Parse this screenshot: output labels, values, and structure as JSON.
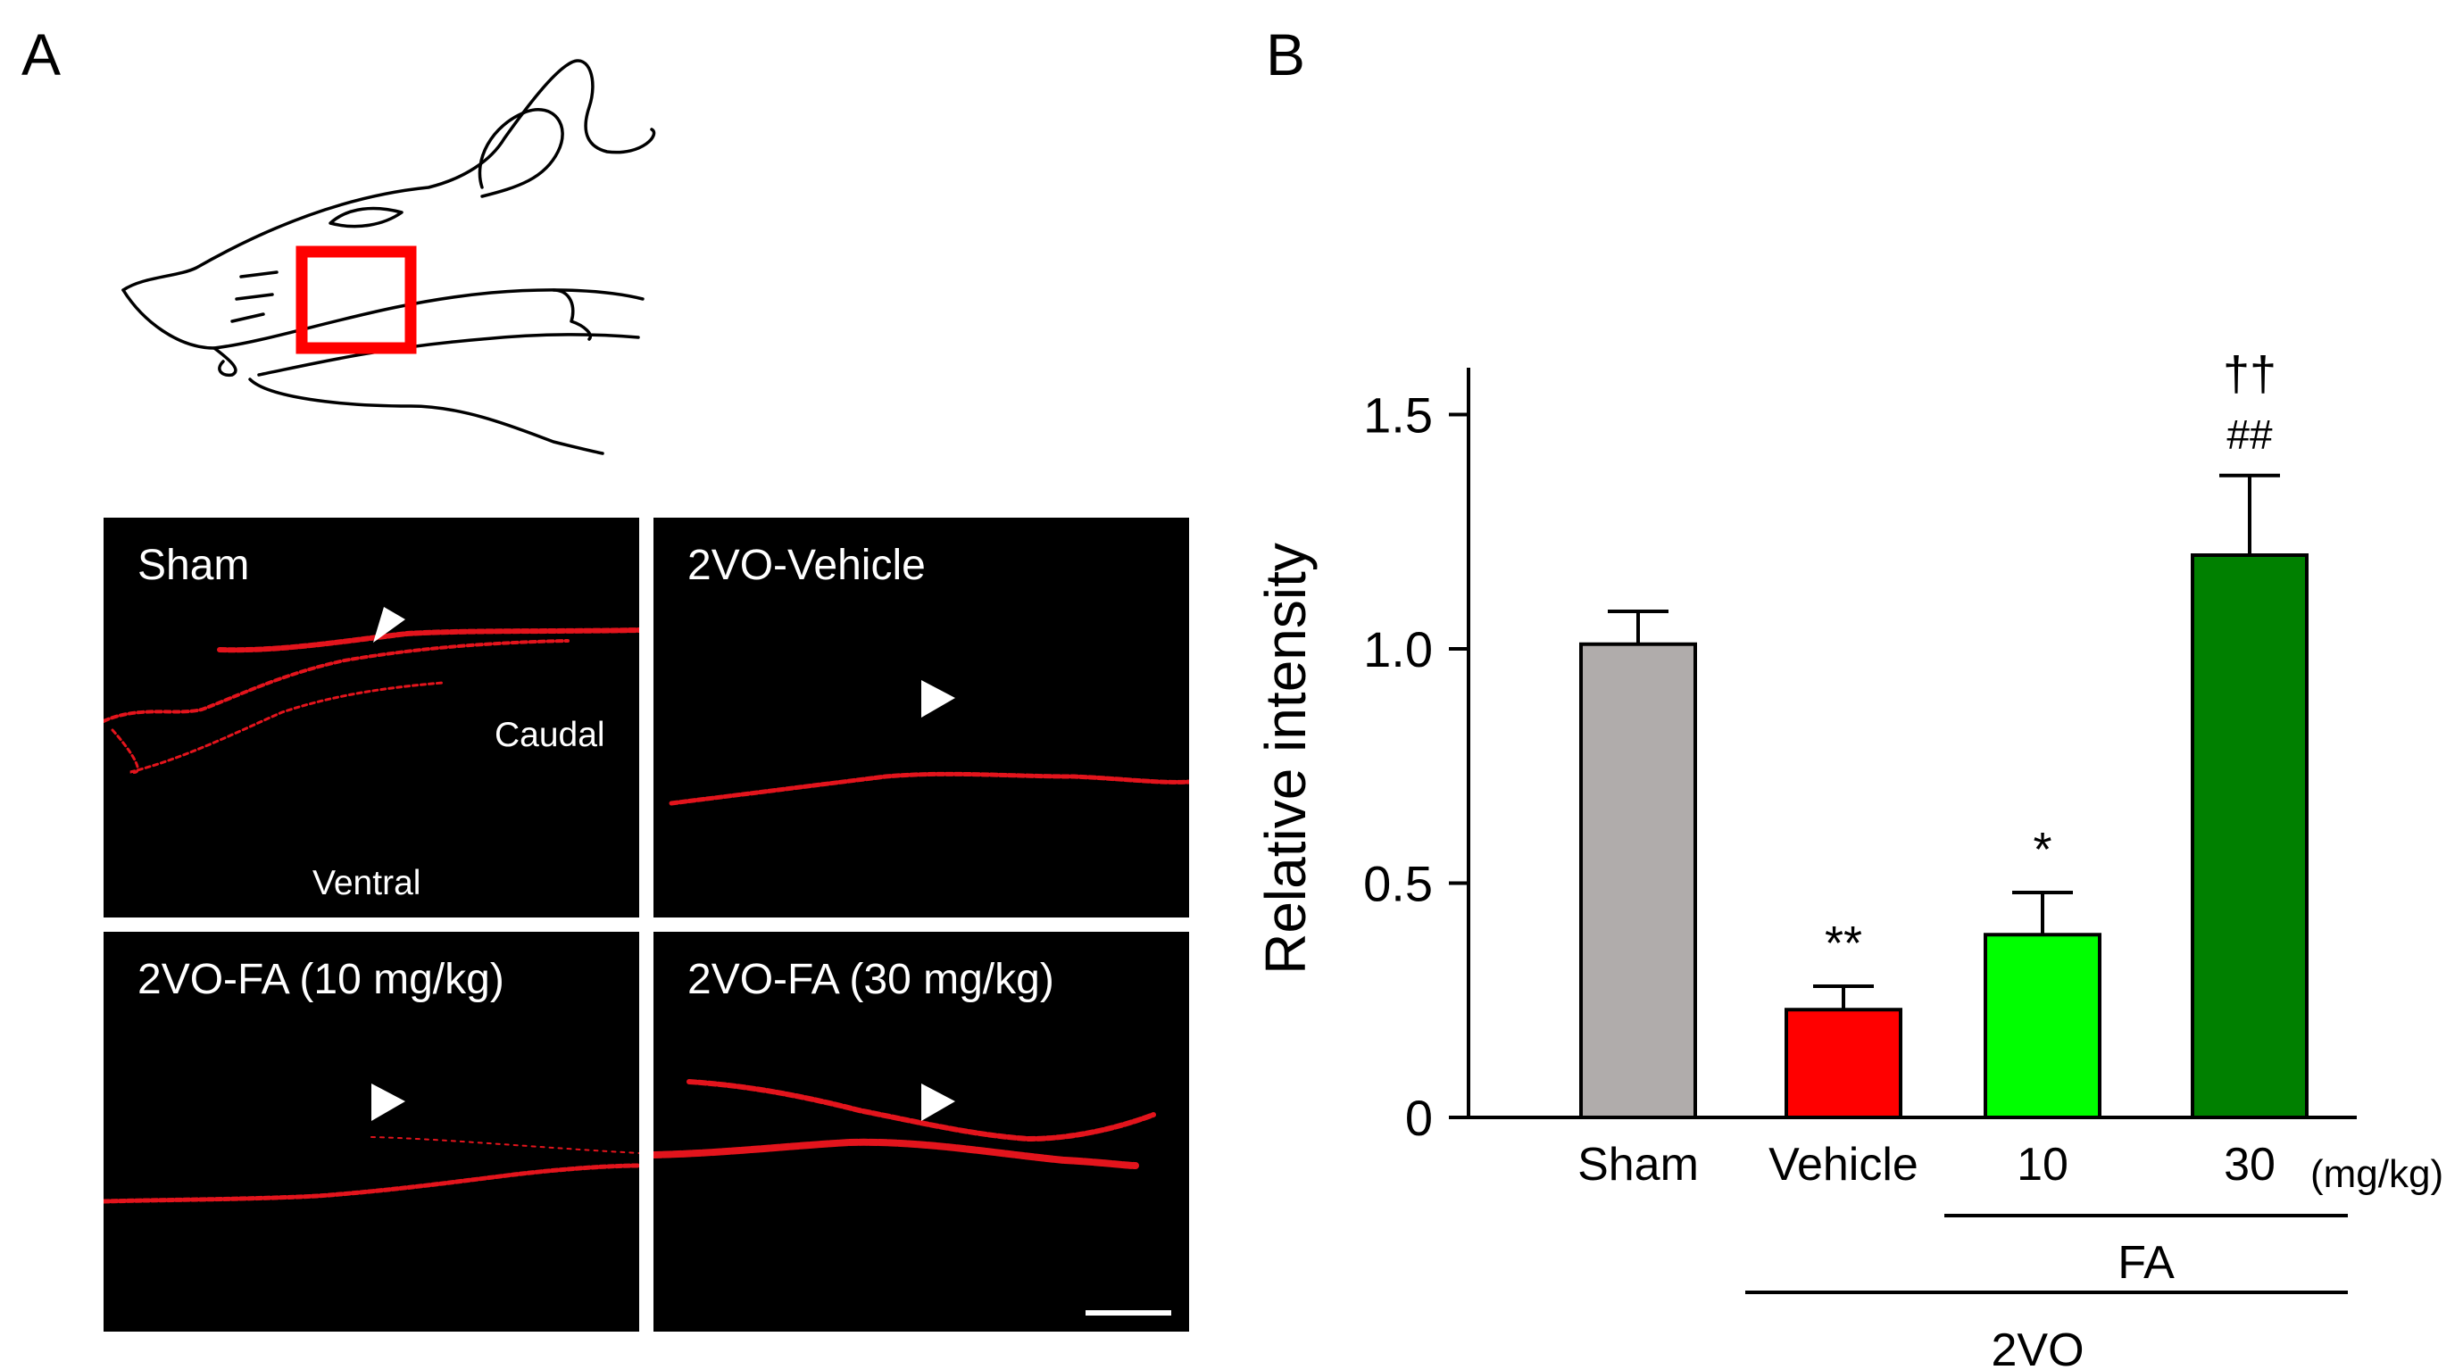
{
  "panels": {
    "a_label": "A",
    "b_label": "B"
  },
  "micrographs": [
    {
      "label": "Sham",
      "orientation": [
        "Caudal",
        "Ventral"
      ]
    },
    {
      "label": "2VO-Vehicle"
    },
    {
      "label": "2VO-FA (10 mg/kg)"
    },
    {
      "label": "2VO-FA (30 mg/kg)"
    }
  ],
  "colors": {
    "sham": "#b0acab",
    "vehicle": "#ff0000",
    "fa10": "#00ff00",
    "fa30": "#008000",
    "signal": "#e3141c",
    "highlight_box": "#ff0000"
  },
  "chart_data": {
    "type": "bar",
    "title": "",
    "xlabel": "",
    "ylabel": "Relative intensity",
    "ylim": [
      0,
      1.6
    ],
    "yticks": [
      "0",
      "0.5",
      "1.0",
      "1.5"
    ],
    "ytick_values": [
      0,
      0.5,
      1.0,
      1.5
    ],
    "categories": [
      "Sham",
      "Vehicle",
      "10",
      "30"
    ],
    "x_unit": "(mg/kg)",
    "values": [
      1.01,
      0.23,
      0.39,
      1.2
    ],
    "errors": [
      0.07,
      0.05,
      0.09,
      0.17
    ],
    "significance": [
      "",
      "**",
      "*",
      "††|##"
    ],
    "group_labels": [
      {
        "text": "FA",
        "span": [
          "10",
          "30"
        ]
      },
      {
        "text": "2VO",
        "span": [
          "Vehicle",
          "30"
        ]
      }
    ],
    "grid": false,
    "legend": "none"
  }
}
